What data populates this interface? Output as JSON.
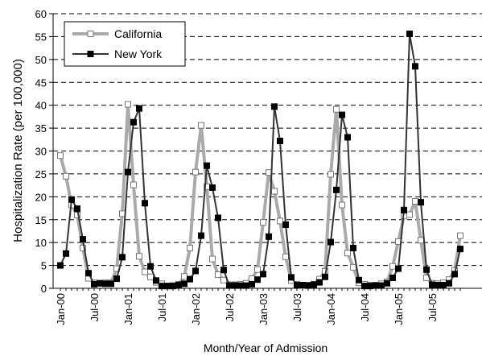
{
  "chart_data": {
    "type": "line",
    "title": "",
    "xlabel": "Month/Year of Admission",
    "ylabel": "Hospitalization Rate (per 100,000)",
    "ylim": [
      0,
      60
    ],
    "yticks": [
      0,
      5,
      10,
      15,
      20,
      25,
      30,
      35,
      40,
      45,
      50,
      55,
      60
    ],
    "grid": "horizontal dashed",
    "legend_position": "top-left",
    "xtick_labels": [
      {
        "label": "Jan-00",
        "month_index": 0
      },
      {
        "label": "Jul-00",
        "month_index": 6
      },
      {
        "label": "Jan-01",
        "month_index": 12
      },
      {
        "label": "Jul-01",
        "month_index": 18
      },
      {
        "label": "Jan-02",
        "month_index": 24
      },
      {
        "label": "Jul-02",
        "month_index": 30
      },
      {
        "label": "Jan-03",
        "month_index": 36
      },
      {
        "label": "Jul-03",
        "month_index": 42
      },
      {
        "label": "Jan-04",
        "month_index": 48
      },
      {
        "label": "Jul-04",
        "month_index": 54
      },
      {
        "label": "Jan-05",
        "month_index": 60
      },
      {
        "label": "Jul-05",
        "month_index": 66
      }
    ],
    "month_count": 72,
    "series": [
      {
        "name": "California",
        "color": "#aaaaaa",
        "marker": "open-square",
        "values": [
          29,
          24.5,
          18.2,
          16,
          8.8,
          2.2,
          1.2,
          1.1,
          1.2,
          1.2,
          4.3,
          16.3,
          40.2,
          22.6,
          7,
          3.6,
          2.5,
          1.3,
          1,
          0.5,
          0.6,
          0.8,
          2.6,
          8.8,
          25.4,
          35.6,
          22.2,
          6.4,
          3,
          1.8,
          0.8,
          0.8,
          0.9,
          1.1,
          2.1,
          4.1,
          14.4,
          25.3,
          21.2,
          14.7,
          6.9,
          1.7,
          0.9,
          0.6,
          0.7,
          0.9,
          2,
          3.7,
          24.9,
          39.1,
          18.2,
          7.7,
          4.6,
          1.2,
          0.9,
          0.7,
          0.7,
          1,
          1.4,
          4.8,
          10.2,
          15.8,
          16.1,
          19,
          10.5,
          2.3,
          1.1,
          1,
          1.2,
          1.9,
          3.9,
          11.5
        ]
      },
      {
        "name": "New York",
        "color": "#333333",
        "marker": "filled-square",
        "values": [
          5,
          7.6,
          19.4,
          17.4,
          10.7,
          3.3,
          0.9,
          1.1,
          1,
          1,
          2.1,
          6.8,
          25.4,
          36.3,
          39.3,
          18.6,
          4.8,
          1.7,
          0.5,
          0.5,
          0.5,
          0.8,
          1,
          2,
          3.8,
          11.5,
          26.8,
          22,
          15.4,
          4,
          0.6,
          0.6,
          0.6,
          0.6,
          0.9,
          1.9,
          3.1,
          11.3,
          39.7,
          32.2,
          13.9,
          2.4,
          0.7,
          0.7,
          0.6,
          0.8,
          1.3,
          2.5,
          10.1,
          21.5,
          37.9,
          33,
          8.8,
          1.8,
          0.5,
          0.5,
          0.6,
          0.6,
          1.1,
          2.3,
          4.3,
          17.1,
          55.6,
          48.5,
          18.8,
          4.1,
          0.8,
          0.7,
          0.7,
          1.1,
          3.1,
          8.6
        ]
      }
    ]
  }
}
